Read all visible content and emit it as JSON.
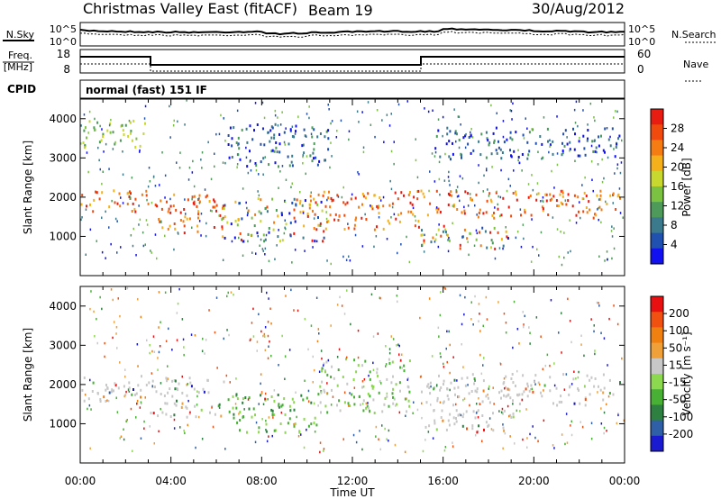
{
  "header": {
    "station": "Christmas Valley East (fitACF)",
    "beam": "Beam 19",
    "date": "30/Aug/2012"
  },
  "nsky_panel": {
    "left_label": "N.Sky",
    "left_ticks": [
      "10^5",
      "10^0"
    ],
    "right_ticks": [
      "10^5",
      "10^0"
    ],
    "right_label": "N.Search"
  },
  "freq_panel": {
    "left_label_1": "Freq.",
    "left_label_2": "[MHz]",
    "left_ticks": [
      "18",
      "8"
    ],
    "right_ticks": [
      "60",
      "0"
    ],
    "right_label": "Nave"
  },
  "cpid_panel": {
    "label": "CPID",
    "text": "normal (fast) 151 IF"
  },
  "chart_data": [
    {
      "type": "heatmap",
      "variable": "Power",
      "ylabel": "Slant Range [km]",
      "xlabel": "Time UT",
      "yticks": [
        "1000",
        "2000",
        "3000",
        "4000"
      ],
      "xticks": [
        "00:00",
        "04:00",
        "08:00",
        "12:00",
        "16:00",
        "20:00",
        "00:00"
      ],
      "colorbar_label": "Power [dB]",
      "colorbar_ticks": [
        "4",
        "8",
        "12",
        "16",
        "20",
        "24",
        "28"
      ],
      "colorbar_colors": [
        "#1010f0",
        "#2050b0",
        "#3b7a8c",
        "#4d9a5a",
        "#7cc242",
        "#c8d82e",
        "#f4b11c",
        "#f47c12",
        "#f04a0e",
        "#e81c10"
      ],
      "bands": [
        {
          "t0": 0.0,
          "t1": 3.0,
          "r0": 1600,
          "r1": 2200,
          "level": "high"
        },
        {
          "t0": 0.0,
          "t1": 3.0,
          "r0": 3300,
          "r1": 4000,
          "level": "mid"
        },
        {
          "t0": 3.2,
          "t1": 6.3,
          "r0": 1100,
          "r1": 2100,
          "level": "high"
        },
        {
          "t0": 6.2,
          "t1": 11.0,
          "r0": 900,
          "r1": 2000,
          "level": "mix"
        },
        {
          "t0": 6.5,
          "t1": 11.0,
          "r0": 2800,
          "r1": 3900,
          "level": "low"
        },
        {
          "t0": 10.0,
          "t1": 15.0,
          "r0": 1200,
          "r1": 2200,
          "level": "high"
        },
        {
          "t0": 15.0,
          "t1": 23.8,
          "r0": 1500,
          "r1": 2200,
          "level": "high"
        },
        {
          "t0": 15.0,
          "t1": 19.0,
          "r0": 700,
          "r1": 1300,
          "level": "mix"
        },
        {
          "t0": 15.5,
          "t1": 23.8,
          "r0": 3000,
          "r1": 3800,
          "level": "low"
        }
      ]
    },
    {
      "type": "heatmap",
      "variable": "Velocity",
      "ylabel": "Slant Range [km]",
      "xlabel": "Time UT",
      "yticks": [
        "1000",
        "2000",
        "3000",
        "4000"
      ],
      "xticks": [
        "00:00",
        "04:00",
        "08:00",
        "12:00",
        "16:00",
        "20:00",
        "00:00"
      ],
      "colorbar_label": "Velocity [m s⁻¹]",
      "colorbar_ticks": [
        "200",
        "100",
        "50",
        "15",
        "-15",
        "-50",
        "-100",
        "-200"
      ],
      "colorbar_colors": [
        "#1a1ad0",
        "#2f5fa6",
        "#2e8040",
        "#48b035",
        "#8cd84e",
        "#c8c8c8",
        "#f0a038",
        "#f08010",
        "#f05010",
        "#e81010"
      ],
      "bands": [
        {
          "t0": 0.0,
          "t1": 3.0,
          "r0": 1600,
          "r1": 2300,
          "level": "gray"
        },
        {
          "t0": 3.0,
          "t1": 6.3,
          "r0": 1200,
          "r1": 2200,
          "level": "gray"
        },
        {
          "t0": 6.5,
          "t1": 10.5,
          "r0": 800,
          "r1": 1800,
          "level": "green"
        },
        {
          "t0": 10.5,
          "t1": 14.5,
          "r0": 1300,
          "r1": 2700,
          "level": "mixgreen"
        },
        {
          "t0": 15.0,
          "t1": 23.8,
          "r0": 1500,
          "r1": 2300,
          "level": "gray"
        },
        {
          "t0": 15.0,
          "t1": 19.5,
          "r0": 800,
          "r1": 1400,
          "level": "gray"
        }
      ]
    }
  ]
}
